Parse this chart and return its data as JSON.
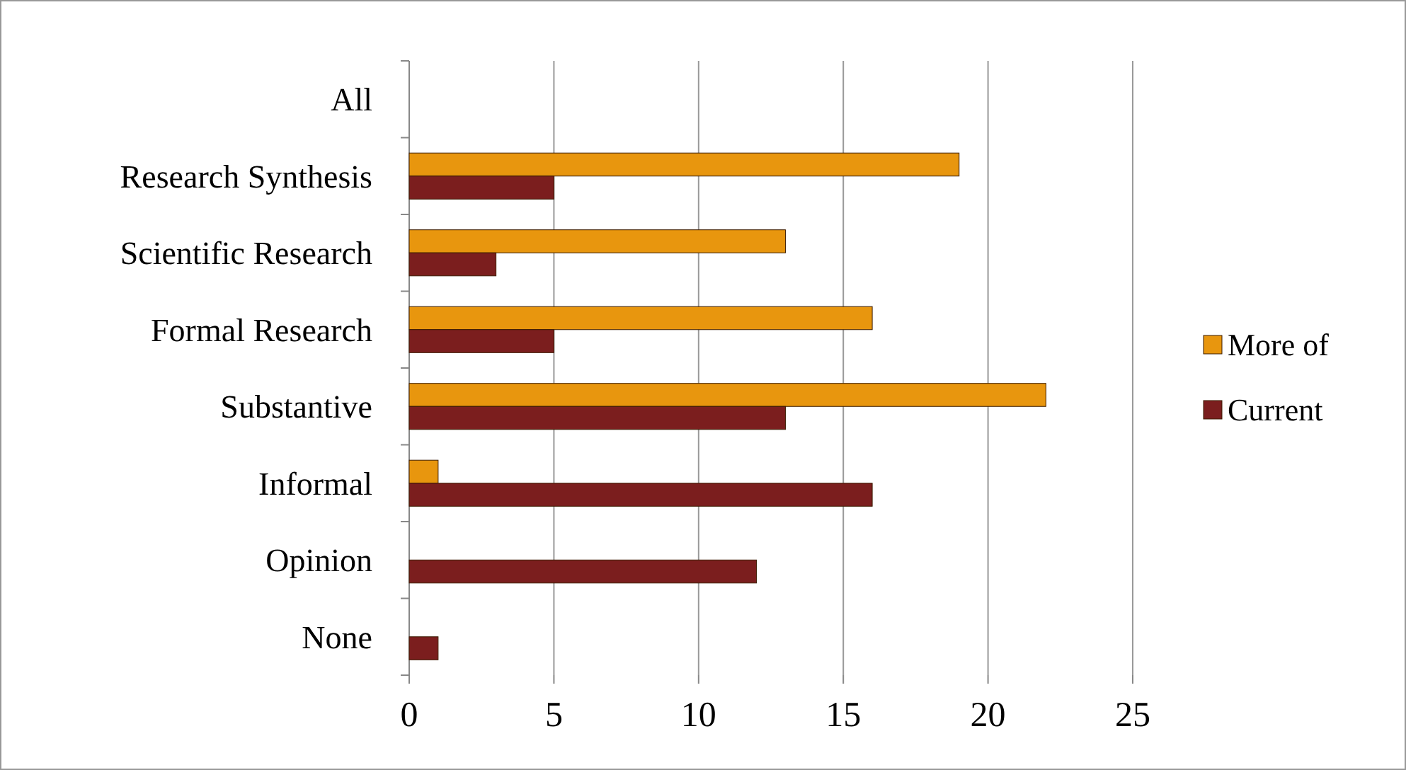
{
  "chart_data": {
    "type": "bar",
    "orientation": "horizontal",
    "categories": [
      "All",
      "Research Synthesis",
      "Scientific Research",
      "Formal Research",
      "Substantive",
      "Informal",
      "Opinion",
      "None"
    ],
    "series": [
      {
        "name": "More of",
        "color": "#e8960e",
        "values": [
          null,
          19,
          13,
          16,
          22,
          1,
          null,
          null
        ]
      },
      {
        "name": "Current",
        "color": "#7b1e1e",
        "values": [
          null,
          5,
          3,
          5,
          13,
          16,
          12,
          1
        ]
      }
    ],
    "xlim": [
      0,
      25
    ],
    "xticks": [
      0,
      5,
      10,
      15,
      20,
      25
    ],
    "grid": "x",
    "legend": "right"
  }
}
